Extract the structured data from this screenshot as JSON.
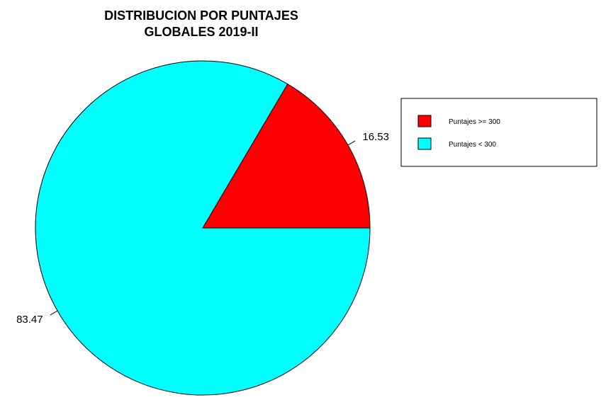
{
  "chart_data": {
    "type": "pie",
    "title_lines": [
      "DISTRIBUCION POR PUNTAJES",
      "GLOBALES 2019-II"
    ],
    "slices": [
      {
        "label": "Puntajes >= 300",
        "value": 16.53,
        "value_label": "16.53",
        "color": "#FF0000"
      },
      {
        "label": "Puntajes < 300",
        "value": 83.47,
        "value_label": "83.47",
        "color": "#00FFFF"
      }
    ],
    "legend": {
      "position": "right",
      "entries": [
        "Puntajes >= 300",
        "Puntajes < 300"
      ]
    }
  }
}
